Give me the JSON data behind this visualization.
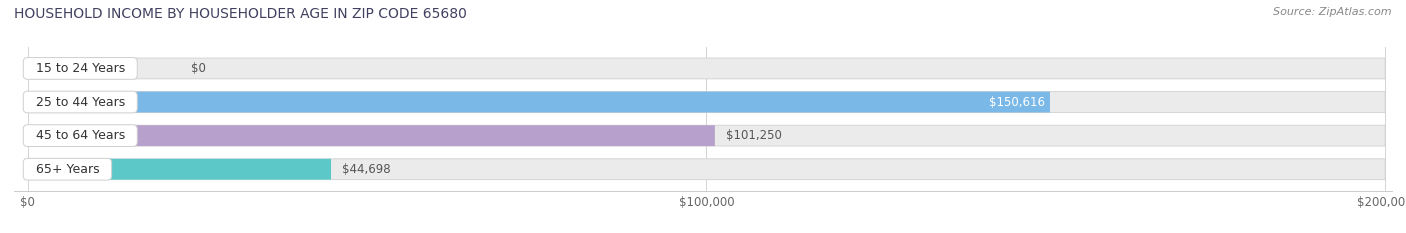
{
  "title": "HOUSEHOLD INCOME BY HOUSEHOLDER AGE IN ZIP CODE 65680",
  "source": "Source: ZipAtlas.com",
  "categories": [
    "15 to 24 Years",
    "25 to 44 Years",
    "45 to 64 Years",
    "65+ Years"
  ],
  "values": [
    0,
    150616,
    101250,
    44698
  ],
  "labels": [
    "$0",
    "$150,616",
    "$101,250",
    "$44,698"
  ],
  "bar_colors": [
    "#f0a8a8",
    "#7ab8e8",
    "#b8a0cc",
    "#5cc8c8"
  ],
  "bar_bg_color": "#ebebeb",
  "bar_border_color": "#d0d0d0",
  "xlim": [
    0,
    200000
  ],
  "xticks": [
    0,
    100000,
    200000
  ],
  "xtick_labels": [
    "$0",
    "$100,000",
    "$200,000"
  ],
  "title_fontsize": 10,
  "source_fontsize": 8,
  "label_fontsize": 8.5,
  "category_fontsize": 9,
  "background_color": "#ffffff",
  "bar_height": 0.62,
  "label_inside_color": "white",
  "label_outside_color": "#555555"
}
